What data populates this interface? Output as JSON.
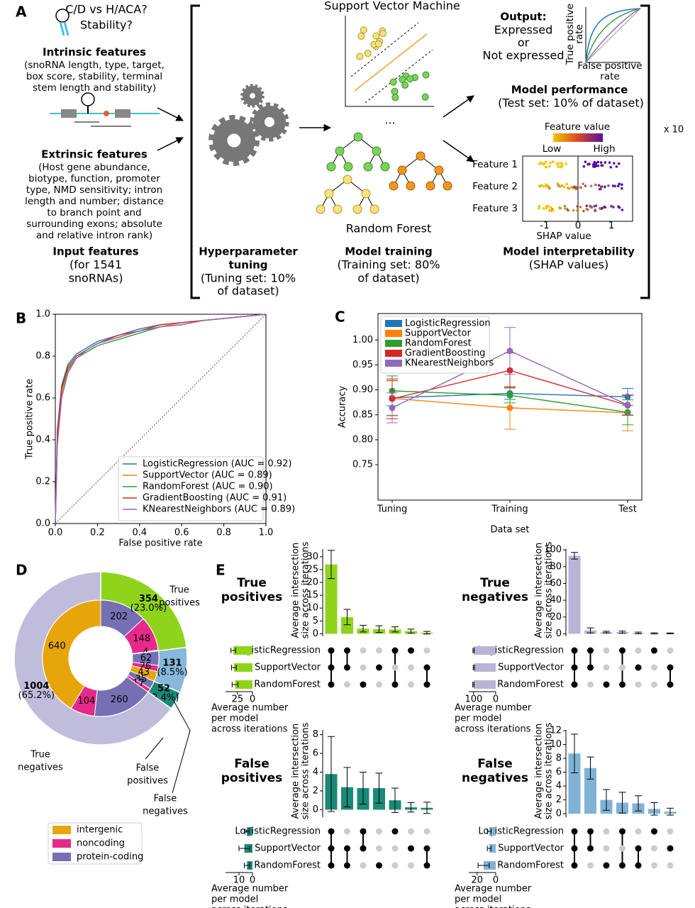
{
  "diagram": {
    "label": "A",
    "question": [
      "C/D vs H/ACA?",
      "Stability?"
    ],
    "intrinsic_title": "Intrinsic features",
    "intrinsic_text": [
      "(snoRNA length, type, target,",
      "box score, stability, terminal",
      "stem length and stability)"
    ],
    "extrinsic_title": "Extrinsic features",
    "extrinsic_text": [
      "(Host gene abundance,",
      "biotype, function, promoter",
      "type, NMD sensitivity; intron",
      "length and number; distance",
      "to branch point and",
      "surrounding exons; absolute",
      "and relative intron rank)"
    ],
    "input_title": "Input features",
    "input_text": [
      "(for 1541",
      "snoRNAs)"
    ],
    "tuning_title": [
      "Hyperparameter",
      "tuning"
    ],
    "tuning_text": [
      "(Tuning set: 10%",
      "of dataset)"
    ],
    "svm": "Support Vector Machine",
    "ellipsis": "...",
    "rf": "Random Forest",
    "training_title": "Model training",
    "training_text": [
      "(Training set: 80%",
      "of dataset)"
    ],
    "output_title": "Output:",
    "output_text": [
      "Expressed",
      "or",
      "Not expressed"
    ],
    "inset_ylabel": [
      "True positive",
      "rate"
    ],
    "inset_xlabel": [
      "False positive",
      "rate"
    ],
    "performance_title": "Model performance",
    "performance_text": "(Test set: 10% of dataset)",
    "feature_value": "Feature value",
    "low": "Low",
    "high": "High",
    "features": [
      "Feature 1",
      "Feature 2",
      "Feature 3"
    ],
    "shap_ticks": [
      "-1",
      "0",
      "1"
    ],
    "shap_label": "SHAP value",
    "interp_title": "Model interpretability",
    "interp_text": "(SHAP values)",
    "repeat": "x 10"
  },
  "chart_data": [
    {
      "type": "line",
      "panel_label": "B",
      "xlabel": "False positive rate",
      "ylabel": "True positive rate",
      "xlim": [
        0,
        1
      ],
      "ylim": [
        0,
        1
      ],
      "xticks": [
        {
          "value": 0,
          "label": "0.0"
        },
        0.2,
        0.4,
        0.6,
        0.8,
        {
          "value": 1,
          "label": "1.0"
        }
      ],
      "yticks": [
        {
          "value": 0,
          "label": "0.0"
        },
        0.2,
        0.4,
        0.6,
        0.8,
        {
          "value": 1,
          "label": "1.0"
        }
      ],
      "diagonal": true,
      "legend": "lower right",
      "x": [
        0,
        0.01,
        0.03,
        0.06,
        0.1,
        0.15,
        0.2,
        0.3,
        0.4,
        0.5,
        0.6,
        0.7,
        0.8,
        0.9,
        1.0
      ],
      "series": [
        {
          "name": "LogisticRegression (AUC = 0.92)",
          "color": "#1f77b4",
          "values": [
            0,
            0.45,
            0.66,
            0.76,
            0.81,
            0.84,
            0.87,
            0.9,
            0.93,
            0.95,
            0.96,
            0.97,
            0.98,
            0.99,
            1.0
          ]
        },
        {
          "name": "SupportVector (AUC = 0.89)",
          "color": "#ff7f0e",
          "values": [
            0,
            0.4,
            0.62,
            0.73,
            0.79,
            0.83,
            0.86,
            0.89,
            0.92,
            0.94,
            0.96,
            0.97,
            0.98,
            0.99,
            1.0
          ]
        },
        {
          "name": "RandomForest (AUC = 0.90)",
          "color": "#2ca02c",
          "values": [
            0,
            0.42,
            0.64,
            0.74,
            0.79,
            0.82,
            0.85,
            0.88,
            0.91,
            0.94,
            0.95,
            0.97,
            0.98,
            0.99,
            1.0
          ]
        },
        {
          "name": "GradientBoosting (AUC = 0.91)",
          "color": "#d62728",
          "values": [
            0,
            0.44,
            0.65,
            0.75,
            0.8,
            0.83,
            0.86,
            0.9,
            0.92,
            0.95,
            0.96,
            0.97,
            0.98,
            0.99,
            1.0
          ]
        },
        {
          "name": "KNearestNeighbors (AUC = 0.89)",
          "color": "#9467bd",
          "values": [
            0,
            0.38,
            0.6,
            0.72,
            0.79,
            0.83,
            0.86,
            0.89,
            0.92,
            0.94,
            0.95,
            0.97,
            0.98,
            0.99,
            1.0
          ]
        }
      ]
    },
    {
      "type": "line",
      "panel_label": "C",
      "xlabel": "Data set",
      "ylabel": "Accuracy",
      "categories": [
        "Tuning",
        "Training",
        "Test"
      ],
      "ylim": [
        0.679,
        1.053
      ],
      "yticks": [
        0.75,
        {
          "value": 0.8,
          "label": "0.80"
        },
        0.85,
        {
          "value": 0.9,
          "label": "0.90"
        },
        0.95,
        {
          "value": 1,
          "label": "1.00"
        }
      ],
      "legend": "upper left",
      "series": [
        {
          "name": "LogisticRegression",
          "color": "#1f77b4",
          "values": [
            0.884,
            0.893,
            0.886
          ],
          "errors": [
            0.035,
            0.012,
            0.017
          ]
        },
        {
          "name": "SupportVector",
          "color": "#ff7f0e",
          "values": [
            0.883,
            0.864,
            0.854
          ],
          "errors": [
            0.035,
            0.043,
            0.036
          ]
        },
        {
          "name": "RandomForest",
          "color": "#2ca02c",
          "values": [
            0.898,
            0.889,
            0.855
          ],
          "errors": [
            0.03,
            0.015,
            0.025
          ]
        },
        {
          "name": "GradientBoosting",
          "color": "#d62728",
          "values": [
            0.882,
            0.939,
            0.869
          ],
          "errors": [
            0.04,
            0.035,
            0.02
          ]
        },
        {
          "name": "KNearestNeighbors",
          "color": "#9467bd",
          "values": [
            0.864,
            0.978,
            0.87
          ],
          "errors": [
            0.03,
            0.047,
            0.02
          ]
        }
      ]
    },
    {
      "type": "pie",
      "panel_label": "D",
      "labels": [
        [
          "True",
          "positives"
        ],
        [
          "False",
          "negatives"
        ],
        [
          "False",
          "positives"
        ],
        [
          "True",
          "negatives"
        ]
      ],
      "values": [
        354,
        131,
        52,
        1004
      ],
      "percent_labels": [
        "(23.0%)",
        "(8.5%)",
        "(3.4%)",
        "(65.2%)"
      ],
      "colors": [
        "#8fd41a",
        "#86b8da",
        "#1a8a78",
        "#c0bddc"
      ],
      "series": [
        {
          "name": "intergenic",
          "color": "#e6a60a",
          "values": [
            4,
            43,
            0,
            640
          ]
        },
        {
          "name": "noncoding",
          "color": "#e7298a",
          "values": [
            148,
            26,
            17,
            104
          ]
        },
        {
          "name": "protein-coding",
          "color": "#7570b3",
          "values": [
            202,
            62,
            35,
            260
          ]
        }
      ]
    },
    {
      "type": "upset",
      "panel_label": "E",
      "title": [
        "True",
        "positives"
      ],
      "color": "#8fd41a",
      "ylabel": [
        "Average intersection",
        "size across iterations"
      ],
      "xlabel": [
        "Average number",
        "per model",
        "across iterations"
      ],
      "sets": [
        "LogisticRegression",
        "SupportVector",
        "RandomForest"
      ],
      "values": [
        27,
        6.5,
        2,
        1.8,
        1.7,
        1,
        0.4
      ],
      "errors": [
        5.5,
        3,
        1.3,
        1.3,
        1,
        0.8,
        0.5
      ],
      "memberships": [
        [
          0,
          1,
          2
        ],
        [
          0,
          1
        ],
        [
          2
        ],
        [
          1
        ],
        [
          0,
          2
        ],
        [
          0
        ],
        [
          1,
          2
        ]
      ],
      "ylim": [
        -1,
        33
      ],
      "yticks": [
        0,
        5,
        10,
        15,
        20,
        25,
        30
      ],
      "set_sizes": [
        32,
        31,
        29
      ],
      "set_errors": [
        4,
        4,
        5
      ],
      "xlim": [
        45,
        0
      ],
      "xticks": [
        25,
        0
      ]
    },
    {
      "type": "upset",
      "title": [
        "True",
        "negatives"
      ],
      "color": "#b8b4d8",
      "ylabel": [
        "Average intersection",
        "size across iterations"
      ],
      "xlabel": [
        "Average number",
        "per model",
        "across iterations"
      ],
      "sets": [
        "LogisticRegression",
        "SupportVector",
        "RandomForest"
      ],
      "values": [
        93,
        4,
        2,
        2,
        1,
        0.5,
        0.5
      ],
      "errors": [
        4,
        3,
        1,
        1.2,
        1,
        0.7,
        0.5
      ],
      "memberships": [
        [
          0,
          1,
          2
        ],
        [
          0,
          1
        ],
        [
          2
        ],
        [
          0,
          2
        ],
        [
          1
        ],
        [
          0
        ],
        [
          1,
          2
        ]
      ],
      "ylim": [
        -3,
        101
      ],
      "yticks": [
        0,
        20,
        40,
        60,
        80,
        100
      ],
      "set_sizes": [
        100,
        99,
        101
      ],
      "set_errors": [
        3,
        3,
        3
      ],
      "xlim": [
        122,
        0
      ],
      "xticks": [
        100,
        0
      ]
    },
    {
      "type": "upset",
      "title": [
        "False",
        "positives"
      ],
      "color": "#1a8a78",
      "ylabel": [
        "Average intersection",
        "size across iterations"
      ],
      "xlabel": [
        "Average number",
        "per model",
        "across iterations"
      ],
      "sets": [
        "LogisticRegression",
        "SupportVector",
        "RandomForest"
      ],
      "values": [
        3.8,
        2.4,
        2.3,
        2.3,
        1,
        0.25,
        0.2
      ],
      "errors": [
        4,
        2.1,
        1.7,
        1.6,
        1.3,
        0.5,
        0.6
      ],
      "memberships": [
        [
          0,
          1,
          2
        ],
        [
          1,
          2
        ],
        [
          0,
          1
        ],
        [
          2
        ],
        [
          0
        ],
        [
          1
        ],
        [
          1,
          2
        ]
      ],
      "ylim": [
        -0.8,
        8.5
      ],
      "yticks": [
        0,
        2,
        4,
        6,
        8
      ],
      "set_sizes": [
        4,
        6,
        4
      ],
      "set_errors": [
        1.5,
        4,
        2
      ],
      "xlim": [
        20,
        0
      ],
      "xticks": [
        10,
        0
      ]
    },
    {
      "type": "upset",
      "title": [
        "False",
        "negatives"
      ],
      "color": "#7fb3d5",
      "ylabel": [
        "Average intersection",
        "size across iterations"
      ],
      "xlabel": [
        "Average number",
        "per model",
        "across iterations"
      ],
      "sets": [
        "LogisticRegression",
        "SupportVector",
        "RandomForest"
      ],
      "values": [
        8.7,
        6.6,
        2,
        1.6,
        1.5,
        0.7,
        0.3
      ],
      "errors": [
        2.8,
        1.6,
        1.5,
        1.5,
        1.1,
        0.9,
        0.5
      ],
      "memberships": [
        [
          0,
          1,
          2
        ],
        [
          0,
          1
        ],
        [
          2
        ],
        [
          0,
          2
        ],
        [
          1,
          2
        ],
        [
          0
        ],
        [
          1
        ]
      ],
      "ylim": [
        -0.5,
        12.1
      ],
      "yticks": [
        0,
        2,
        4,
        6,
        8,
        10,
        12
      ],
      "set_sizes": [
        7,
        7,
        13
      ],
      "set_errors": [
        2,
        2,
        6
      ],
      "xlim": [
        29,
        0
      ],
      "xticks": [
        20,
        0
      ]
    }
  ]
}
